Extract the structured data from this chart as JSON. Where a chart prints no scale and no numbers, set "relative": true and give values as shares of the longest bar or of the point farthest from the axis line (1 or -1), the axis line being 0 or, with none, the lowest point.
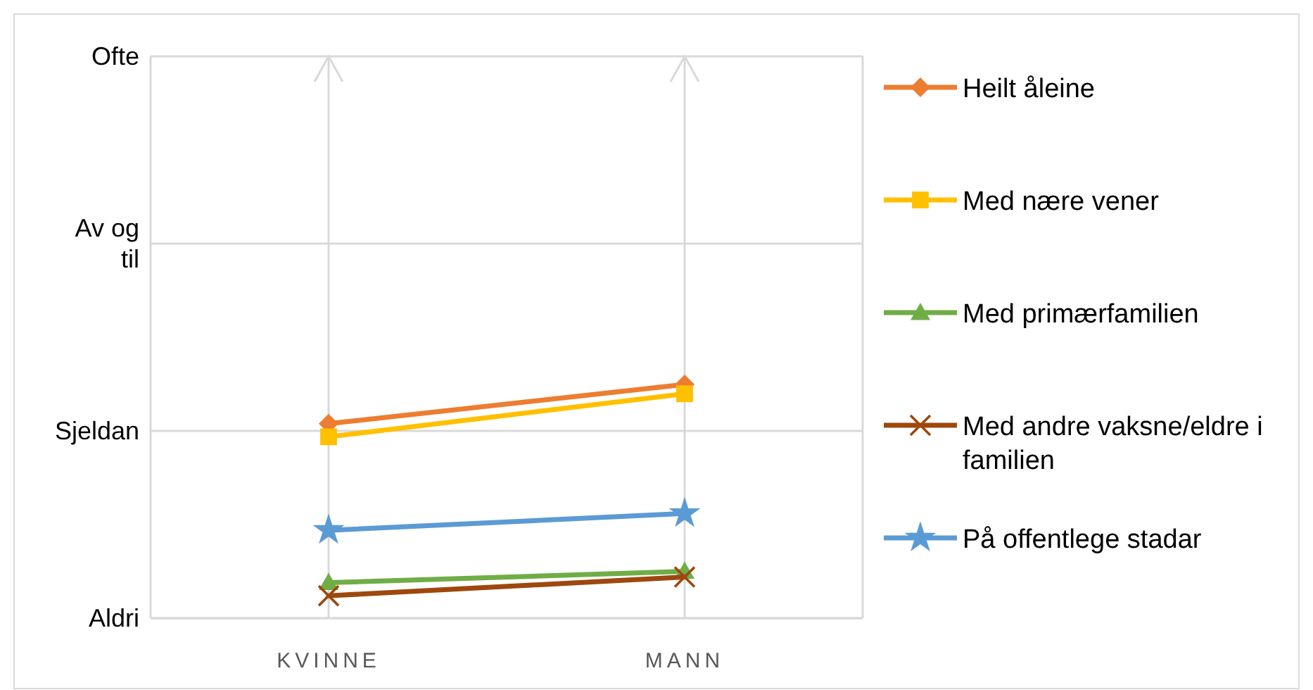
{
  "chart_data": {
    "type": "line",
    "categories": [
      "KVINNE",
      "MANN"
    ],
    "relative": true,
    "annotations": [
      "Aldri",
      "Sjeldan",
      "Av og til",
      "Ofte"
    ],
    "grid": true,
    "legend": "right",
    "series": [
      {
        "name": "Heilt åleine",
        "color": "#ed7d31",
        "marker": "diamond",
        "values": [
          0.832,
          1
        ]
      },
      {
        "name": "Med nære vener",
        "color": "#ffc000",
        "marker": "square",
        "values": [
          0.776,
          0.96
        ]
      },
      {
        "name": "Med primærfamilien",
        "color": "#70ad47",
        "marker": "triangle",
        "values": [
          0.152,
          0.2
        ]
      },
      {
        "name": "Med andre vaksne/eldre i familien",
        "color": "#9e480e",
        "marker": "cross",
        "values": [
          0.096,
          0.176
        ]
      },
      {
        "name": "På offentlege stadar",
        "color": "#5b9bd5",
        "marker": "star",
        "values": [
          0.376,
          0.448
        ]
      }
    ]
  }
}
